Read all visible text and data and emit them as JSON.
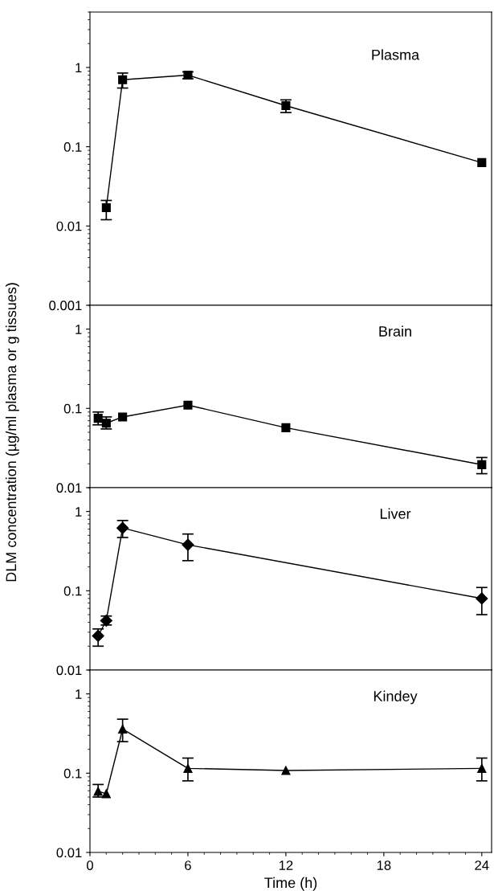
{
  "chart_data": [
    {
      "type": "line",
      "ylabel": "DLM concentration (µg/ml plasma or g tissues)",
      "annotations": [
        "Plasma"
      ],
      "log": "y",
      "marker": "square",
      "line_style": "solid",
      "grid": false,
      "legend": false,
      "tick_labels": "y",
      "series": [
        {
          "color": "#000000",
          "x": [
            1,
            2,
            6,
            12,
            24
          ],
          "values": [
            0.017,
            0.7,
            0.8,
            0.33,
            0.063
          ],
          "errors": [
            [
              0.012,
              0.021
            ],
            [
              0.55,
              0.85
            ],
            [
              0.72,
              0.88
            ],
            [
              0.27,
              0.39
            ],
            null
          ]
        }
      ],
      "xlim": [
        0,
        24.6
      ],
      "ylim": [
        0.001,
        5
      ],
      "yticks": [
        0.001,
        0.01,
        0.1,
        1
      ]
    },
    {
      "type": "line",
      "annotations": [
        "Brain"
      ],
      "log": "y",
      "marker": "square",
      "line_style": "solid",
      "grid": false,
      "legend": false,
      "tick_labels": "y",
      "series": [
        {
          "color": "#000000",
          "x": [
            0.5,
            1,
            2,
            6,
            12,
            24
          ],
          "values": [
            0.075,
            0.065,
            0.078,
            0.11,
            0.057,
            0.0195
          ],
          "errors": [
            [
              0.062,
              0.09
            ],
            [
              0.055,
              0.078
            ],
            null,
            null,
            null,
            [
              0.015,
              0.024
            ]
          ]
        }
      ],
      "xlim": [
        0,
        24.6
      ],
      "ylim": [
        0.01,
        2
      ],
      "yticks": [
        0.01,
        0.1,
        1
      ]
    },
    {
      "type": "line",
      "annotations": [
        "Liver"
      ],
      "log": "y",
      "marker": "diamond",
      "line_style": "solid",
      "grid": false,
      "legend": false,
      "tick_labels": "y",
      "series": [
        {
          "color": "#000000",
          "x": [
            0.5,
            1,
            2,
            6,
            24
          ],
          "values": [
            0.027,
            0.042,
            0.62,
            0.38,
            0.08
          ],
          "errors": [
            [
              0.02,
              0.033
            ],
            [
              0.037,
              0.048
            ],
            [
              0.47,
              0.77
            ],
            [
              0.24,
              0.52
            ],
            [
              0.05,
              0.11
            ]
          ]
        }
      ],
      "xlim": [
        0,
        24.6
      ],
      "ylim": [
        0.01,
        2
      ],
      "yticks": [
        0.01,
        0.1,
        1
      ]
    },
    {
      "type": "line",
      "xlabel": "Time (h)",
      "annotations": [
        "Kindey"
      ],
      "log": "y",
      "marker": "triangle",
      "line_style": "solid",
      "grid": false,
      "legend": false,
      "series": [
        {
          "color": "#000000",
          "x": [
            0.5,
            1,
            2,
            6,
            12,
            24
          ],
          "values": [
            0.059,
            0.055,
            0.36,
            0.115,
            0.108,
            0.115
          ],
          "errors": [
            [
              0.05,
              0.072
            ],
            null,
            [
              0.25,
              0.48
            ],
            [
              0.08,
              0.155
            ],
            null,
            [
              0.08,
              0.155
            ]
          ]
        }
      ],
      "xlim": [
        0,
        24.6
      ],
      "xticks": [
        0,
        6,
        12,
        18,
        24
      ],
      "ylim": [
        0.01,
        2
      ],
      "yticks": [
        0.01,
        0.1,
        1
      ]
    }
  ]
}
